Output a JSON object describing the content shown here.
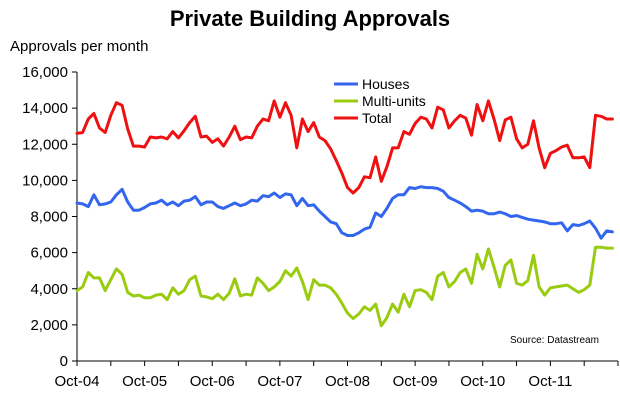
{
  "chart_data": {
    "type": "line",
    "title": "Private Building Approvals",
    "ylabel": "Approvals per month",
    "xlabel": "",
    "ylim": [
      0,
      16000
    ],
    "yticks": [
      0,
      2000,
      4000,
      6000,
      8000,
      10000,
      12000,
      14000,
      16000
    ],
    "ytick_labels": [
      "0",
      "2,000",
      "4,000",
      "6,000",
      "8,000",
      "10,000",
      "12,000",
      "14,000",
      "16,000"
    ],
    "xtick_labels": [
      "Oct-04",
      "Oct-05",
      "Oct-06",
      "Oct-07",
      "Oct-08",
      "Oct-09",
      "Oct-10",
      "Oct-11"
    ],
    "x_start": "Oct-04",
    "n_months": 96,
    "legend_position": "top-center",
    "source": "Source: Datastream",
    "series": [
      {
        "name": "Houses",
        "color": "#3366ee",
        "values": [
          8750,
          8700,
          8550,
          9200,
          8650,
          8700,
          8800,
          9200,
          9500,
          8800,
          8350,
          8350,
          8500,
          8700,
          8750,
          8900,
          8650,
          8800,
          8600,
          8850,
          8900,
          9100,
          8650,
          8800,
          8800,
          8550,
          8450,
          8600,
          8750,
          8600,
          8700,
          8900,
          8850,
          9150,
          9100,
          9300,
          9050,
          9250,
          9200,
          8600,
          9000,
          8600,
          8650,
          8300,
          8000,
          7700,
          7600,
          7100,
          6950,
          6950,
          7100,
          7300,
          7400,
          8200,
          8000,
          8450,
          9000,
          9200,
          9200,
          9600,
          9550,
          9650,
          9600,
          9600,
          9550,
          9400,
          9050,
          8900,
          8750,
          8550,
          8300,
          8350,
          8300,
          8150,
          8150,
          8250,
          8150,
          8000,
          8050,
          7950,
          7850,
          7800,
          7750,
          7700,
          7600,
          7600,
          7650,
          7200,
          7550,
          7500,
          7600,
          7750,
          7350,
          6800,
          7200,
          7150
        ]
      },
      {
        "name": "Multi-units",
        "color": "#99cc11",
        "values": [
          3900,
          4100,
          4900,
          4600,
          4600,
          3900,
          4500,
          5100,
          4800,
          3800,
          3600,
          3650,
          3500,
          3500,
          3650,
          3700,
          3400,
          4050,
          3700,
          3900,
          4500,
          4700,
          3600,
          3550,
          3450,
          3700,
          3400,
          3750,
          4550,
          3600,
          3700,
          3650,
          4600,
          4300,
          3900,
          4100,
          4400,
          5000,
          4700,
          5150,
          4400,
          3400,
          4500,
          4200,
          4200,
          4050,
          3700,
          3200,
          2650,
          2350,
          2600,
          3000,
          2800,
          3150,
          1950,
          2400,
          3150,
          2700,
          3700,
          3000,
          3900,
          3950,
          3800,
          3400,
          4700,
          4900,
          4100,
          4400,
          4900,
          5100,
          4300,
          5900,
          5100,
          6200,
          5200,
          4100,
          5300,
          5600,
          4300,
          4200,
          4450,
          5850,
          4100,
          3650,
          4050,
          4100,
          4150,
          4200,
          4000,
          3800,
          3950,
          4200,
          6300,
          6300,
          6250,
          6250
        ]
      },
      {
        "name": "Total",
        "color": "#ee1111",
        "values": [
          12600,
          12650,
          13400,
          13700,
          12900,
          12650,
          13600,
          14300,
          14150,
          12850,
          11900,
          11900,
          11850,
          12400,
          12350,
          12400,
          12300,
          12700,
          12350,
          12750,
          13200,
          13550,
          12400,
          12450,
          12100,
          12300,
          11900,
          12400,
          13000,
          12250,
          12400,
          12350,
          13000,
          13400,
          13300,
          14400,
          13500,
          14300,
          13600,
          11800,
          13400,
          12700,
          13200,
          12400,
          12200,
          11750,
          11100,
          10400,
          9600,
          9300,
          9600,
          10200,
          10150,
          11300,
          9950,
          10750,
          11800,
          11800,
          12700,
          12550,
          13150,
          13500,
          13400,
          12900,
          14050,
          13900,
          12900,
          13300,
          13600,
          13450,
          12500,
          14200,
          13300,
          14400,
          13400,
          12200,
          13350,
          13500,
          12300,
          11800,
          12000,
          13300,
          11800,
          10700,
          11500,
          11650,
          11850,
          11950,
          11250,
          11250,
          11300,
          10700,
          13600,
          13550,
          13400,
          13400
        ]
      }
    ]
  }
}
